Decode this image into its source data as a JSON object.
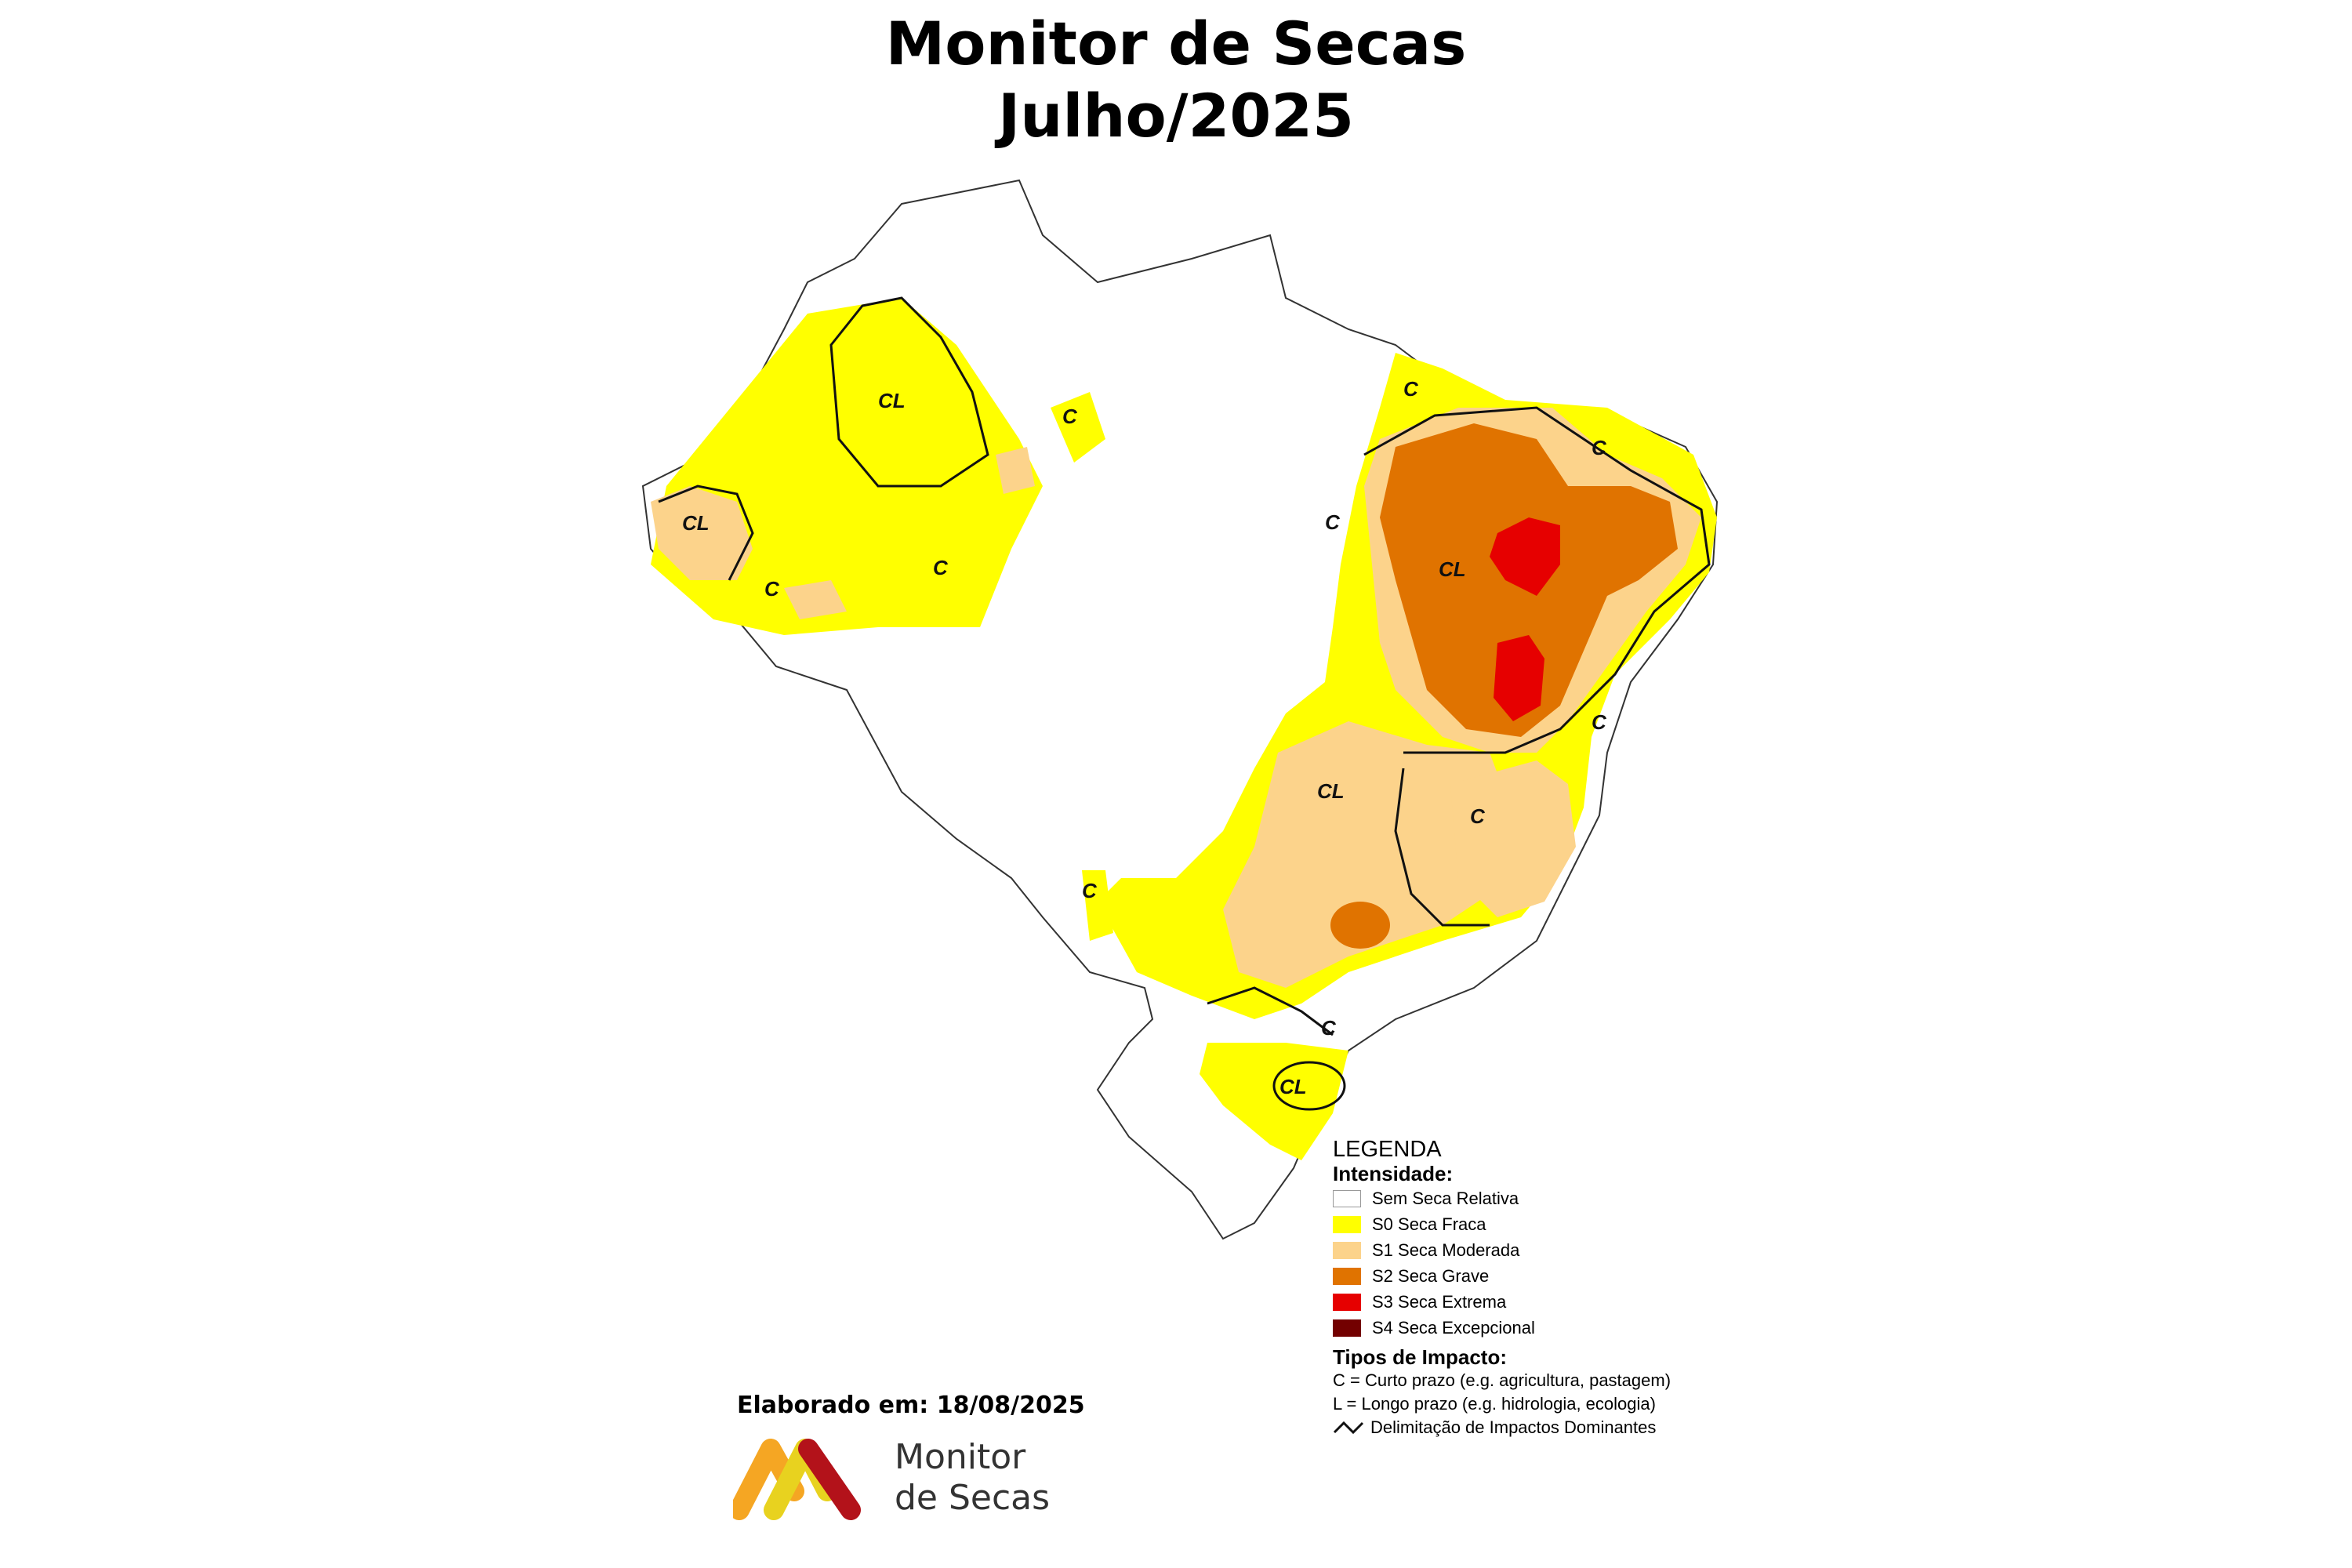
{
  "title_line1": "Monitor de Secas",
  "title_line2": "Julho/2025",
  "legend": {
    "heading": "LEGENDA",
    "intensity_title": "Intensidade:",
    "classes": [
      {
        "label": "Sem Seca Relativa",
        "color": "#ffffff"
      },
      {
        "label": "S0 Seca Fraca",
        "color": "#ffff00"
      },
      {
        "label": "S1 Seca Moderada",
        "color": "#fcd38b"
      },
      {
        "label": "S2 Seca Grave",
        "color": "#e07300"
      },
      {
        "label": "S3 Seca Extrema",
        "color": "#e60000"
      },
      {
        "label": "S4 Seca Excepcional",
        "color": "#730000"
      }
    ],
    "impact_title": "Tipos de Impacto:",
    "impact_c": "C = Curto prazo (e.g. agricultura, pastagem)",
    "impact_l": "L = Longo prazo (e.g. hidrologia, ecologia)",
    "delimitation": "Delimitação de Impactos Dominantes"
  },
  "map_labels": {
    "cl": "CL",
    "c": "C"
  },
  "credit": "Elaborado em: 18/08/2025",
  "logo": {
    "line1": "Monitor",
    "line2": "de Secas",
    "colors": [
      "#f5a623",
      "#e8d21f",
      "#b3121a"
    ]
  }
}
